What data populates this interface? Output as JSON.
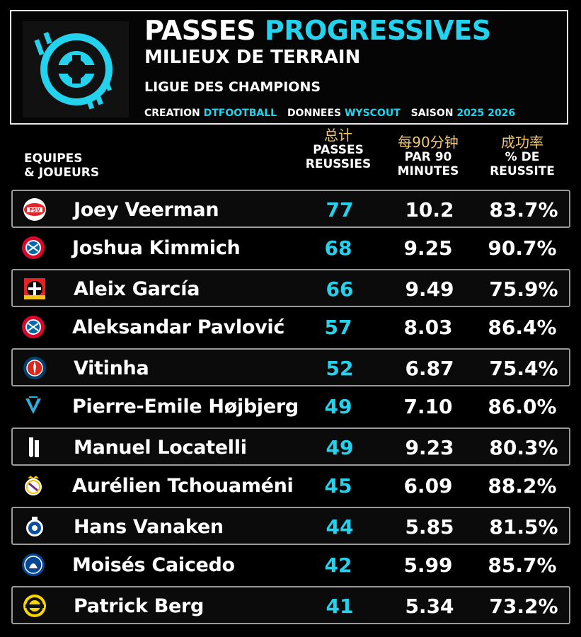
{
  "header": {
    "title_main": "PASSES",
    "title_accent": "PROGRESSIVES",
    "subtitle": "MILIEUX DE TERRAIN",
    "competition": "LIGUE DES CHAMPIONS",
    "credits": {
      "creation_label": "CREATION",
      "creation_value": "DTFOOTBALL",
      "data_label": "DONNEES",
      "data_value": "WYSCOUT",
      "season_label": "SAISON",
      "season_value": "2025 2026"
    }
  },
  "colors": {
    "accent": "#23d2ec",
    "annotation": "#f2c66d",
    "background": "#000000"
  },
  "columns": {
    "team": [
      "EQUIPES",
      "& JOUEURS"
    ],
    "passes": {
      "annotation": "总计",
      "lines": [
        "PASSES",
        "REUSSIES"
      ]
    },
    "per90": {
      "annotation": "每90分钟",
      "lines": [
        "PAR 90",
        "MINUTES"
      ]
    },
    "pct": {
      "annotation": "成功率",
      "lines": [
        "% DE",
        "REUSSITE"
      ]
    }
  },
  "chart_data": {
    "type": "table",
    "columns": [
      "EQUIPES & JOUEURS",
      "PASSES REUSSIES",
      "PAR 90 MINUTES",
      "% DE REUSSITE"
    ],
    "rows": [
      {
        "player": "Joey Veerman",
        "crest": "psv-crest-icon",
        "passes": "77",
        "per90": "10.2",
        "pct": "83.7%"
      },
      {
        "player": "Joshua Kimmich",
        "crest": "bayern-crest-icon",
        "passes": "68",
        "per90": "9.25",
        "pct": "90.7%"
      },
      {
        "player": "Aleix García",
        "crest": "leverkusen-crest-icon",
        "passes": "66",
        "per90": "9.49",
        "pct": "75.9%"
      },
      {
        "player": "Aleksandar Pavlović",
        "crest": "bayern-crest-icon",
        "passes": "57",
        "per90": "8.03",
        "pct": "86.4%"
      },
      {
        "player": "Vitinha",
        "crest": "psg-crest-icon",
        "passes": "52",
        "per90": "6.87",
        "pct": "75.4%"
      },
      {
        "player": "Pierre-Emile Højbjerg",
        "crest": "marseille-crest-icon",
        "passes": "49",
        "per90": "7.10",
        "pct": "86.0%"
      },
      {
        "player": "Manuel Locatelli",
        "crest": "juventus-crest-icon",
        "passes": "49",
        "per90": "9.23",
        "pct": "80.3%"
      },
      {
        "player": "Aurélien Tchouaméni",
        "crest": "real-madrid-crest-icon",
        "passes": "45",
        "per90": "6.09",
        "pct": "88.2%"
      },
      {
        "player": "Hans Vanaken",
        "crest": "club-brugge-crest-icon",
        "passes": "44",
        "per90": "5.85",
        "pct": "81.5%"
      },
      {
        "player": "Moisés Caicedo",
        "crest": "chelsea-crest-icon",
        "passes": "42",
        "per90": "5.99",
        "pct": "85.7%"
      },
      {
        "player": "Patrick Berg",
        "crest": "bodo-glimt-crest-icon",
        "passes": "41",
        "per90": "5.34",
        "pct": "73.2%"
      }
    ]
  }
}
